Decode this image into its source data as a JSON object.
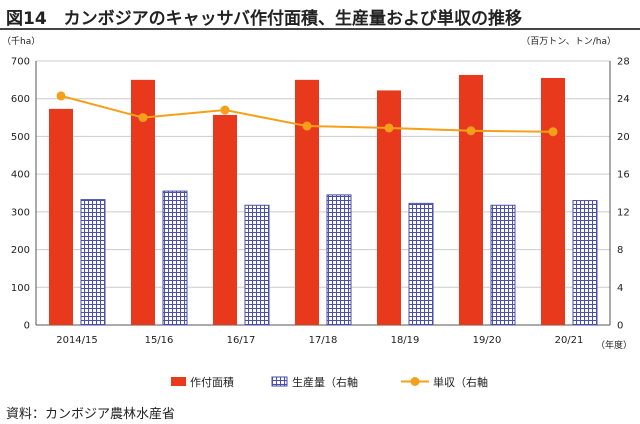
{
  "title": "図14　カンボジアのキャッサバ作付面積、生産量および単収の推移",
  "source": "資料：カンボジア農林水産省",
  "colors": {
    "area_bar": "#e8391d",
    "production_grid": "#4a4fa8",
    "yield_line": "#f5a01a",
    "axis": "#555555",
    "gridline": "#cccccc"
  },
  "chart_data": {
    "type": "bar",
    "categories": [
      "2014/15",
      "15/16",
      "16/17",
      "17/18",
      "18/19",
      "19/20",
      "20/21"
    ],
    "series": [
      {
        "name": "作付面積",
        "axis": "left",
        "values": [
          573,
          650,
          557,
          650,
          622,
          663,
          655
        ]
      },
      {
        "name": "生産量（右軸",
        "axis": "right",
        "values": [
          13.3,
          14.2,
          12.7,
          13.8,
          12.9,
          12.7,
          13.2
        ]
      },
      {
        "name": "単収（右軸",
        "axis": "right",
        "type": "line",
        "values": [
          24.3,
          22.0,
          22.8,
          21.1,
          20.9,
          20.6,
          20.5
        ]
      }
    ],
    "left_axis": {
      "unit": "（千ha）",
      "ylim": [
        0,
        700
      ],
      "ticks": [
        "0",
        "100",
        "200",
        "300",
        "400",
        "500",
        "600",
        "700"
      ]
    },
    "right_axis": {
      "unit": "（百万トン、トン/ha）",
      "ylim": [
        0,
        28
      ],
      "ticks": [
        "0",
        "4",
        "8",
        "12",
        "16",
        "20",
        "24",
        "28"
      ]
    },
    "x_unit": "（年度）",
    "grid": true,
    "legend_position": "bottom"
  }
}
